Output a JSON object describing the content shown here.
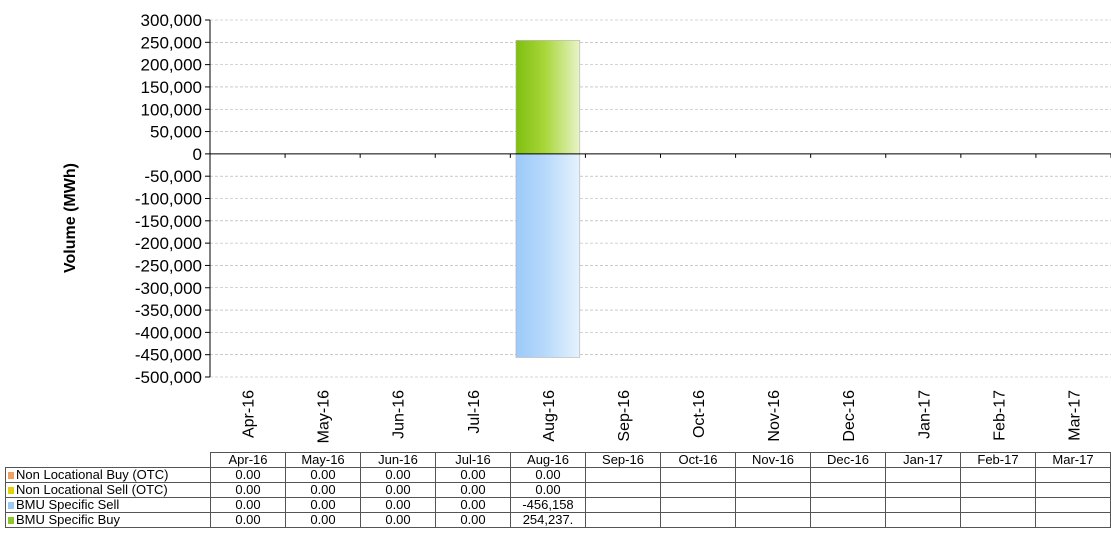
{
  "chart_data": {
    "type": "bar",
    "stacked": true,
    "ylabel": "Volume (MWh)",
    "ylim": [
      -500000,
      300000
    ],
    "yticks": [
      300000,
      250000,
      200000,
      150000,
      100000,
      50000,
      0,
      -50000,
      -100000,
      -150000,
      -200000,
      -250000,
      -300000,
      -350000,
      -400000,
      -450000,
      -500000
    ],
    "ytick_labels": [
      "300,000",
      "250,000",
      "200,000",
      "150,000",
      "100,000",
      "50,000",
      "0",
      "-50,000",
      "-100,000",
      "-150,000",
      "-200,000",
      "-250,000",
      "-300,000",
      "-350,000",
      "-400,000",
      "-450,000",
      "-500,000"
    ],
    "grid": true,
    "categories": [
      "Apr-16",
      "May-16",
      "Jun-16",
      "Jul-16",
      "Aug-16",
      "Sep-16",
      "Oct-16",
      "Nov-16",
      "Dec-16",
      "Jan-17",
      "Feb-17",
      "Mar-17"
    ],
    "series": [
      {
        "name": "Non Locational Buy (OTC)",
        "color": "#f0a060",
        "values": [
          0,
          0,
          0,
          0,
          0,
          null,
          null,
          null,
          null,
          null,
          null,
          null
        ],
        "labels": [
          "0.00",
          "0.00",
          "0.00",
          "0.00",
          "0.00",
          "",
          "",
          "",
          "",
          "",
          "",
          ""
        ]
      },
      {
        "name": "Non Locational Sell (OTC)",
        "color": "#e3d20a",
        "values": [
          0,
          0,
          0,
          0,
          0,
          null,
          null,
          null,
          null,
          null,
          null,
          null
        ],
        "labels": [
          "0.00",
          "0.00",
          "0.00",
          "0.00",
          "0.00",
          "",
          "",
          "",
          "",
          "",
          "",
          ""
        ]
      },
      {
        "name": "BMU Specific Sell",
        "color": "#99c9f5",
        "values": [
          0,
          0,
          0,
          0,
          -456158,
          null,
          null,
          null,
          null,
          null,
          null,
          null
        ],
        "labels": [
          "0.00",
          "0.00",
          "0.00",
          "0.00",
          "-456,158",
          "",
          "",
          "",
          "",
          "",
          "",
          ""
        ]
      },
      {
        "name": "BMU Specific Buy",
        "color": "#8cc62a",
        "values": [
          0,
          0,
          0,
          0,
          254237,
          null,
          null,
          null,
          null,
          null,
          null,
          null
        ],
        "labels": [
          "0.00",
          "0.00",
          "0.00",
          "0.00",
          "254,237.",
          "",
          "",
          "",
          "",
          "",
          "",
          ""
        ]
      }
    ]
  }
}
